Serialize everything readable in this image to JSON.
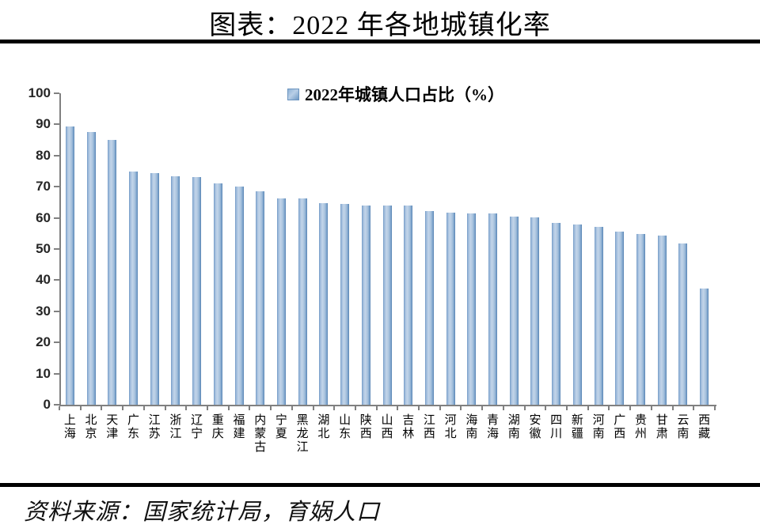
{
  "page": {
    "title": "图表：2022 年各地城镇化率",
    "source": "资料来源：国家统计局，育娲人口"
  },
  "chart_data": {
    "type": "bar",
    "legend": "2022年城镇人口占比（%）",
    "legend_position": "top-center",
    "categories": [
      "上海",
      "北京",
      "天津",
      "广东",
      "江苏",
      "浙江",
      "辽宁",
      "重庆",
      "福建",
      "内蒙古",
      "宁夏",
      "黑龙江",
      "湖北",
      "山东",
      "陕西",
      "山西",
      "吉林",
      "江西",
      "河北",
      "海南",
      "青海",
      "湖南",
      "安徽",
      "四川",
      "新疆",
      "河南",
      "广西",
      "贵州",
      "甘肃",
      "云南",
      "西藏"
    ],
    "values": [
      89.3,
      87.6,
      85.1,
      74.8,
      74.4,
      73.4,
      73.0,
      71.0,
      70.1,
      68.6,
      66.3,
      66.2,
      64.7,
      64.5,
      64.0,
      64.0,
      63.9,
      62.1,
      61.7,
      61.5,
      61.4,
      60.3,
      60.2,
      58.4,
      57.9,
      57.1,
      55.7,
      54.8,
      54.2,
      51.7,
      37.4
    ],
    "ylim": [
      0,
      100
    ],
    "yticks": [
      0,
      10,
      20,
      30,
      40,
      50,
      60,
      70,
      80,
      90,
      100
    ],
    "grid": false,
    "bar_color": "#7ba3cc",
    "bar_gradient": [
      "#6e96c3",
      "#c3d5e9",
      "#5480b0"
    ],
    "axis_color": "#808080",
    "xlabel": "",
    "ylabel": ""
  }
}
